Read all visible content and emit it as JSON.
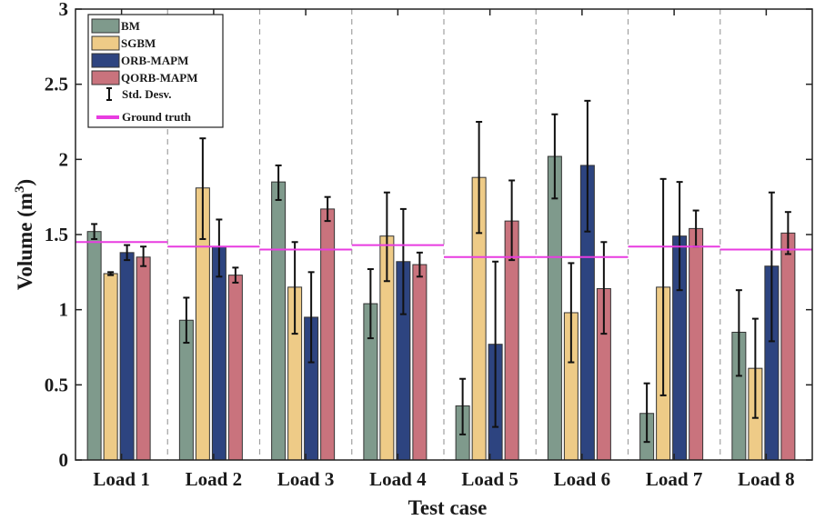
{
  "chart_data": {
    "type": "bar",
    "title": "",
    "xlabel": "Test case",
    "ylabel": "Volume (m",
    "ylabel_superscript": "3",
    "ylabel_close": ")",
    "ylim": [
      0,
      3
    ],
    "yticks": [
      0,
      0.5,
      1,
      1.5,
      2,
      2.5,
      3
    ],
    "ytick_labels": [
      "0",
      "0.5",
      "1",
      "1.5",
      "2",
      "2.5",
      "3"
    ],
    "grid": "vertical dashed separators between groups",
    "categories": [
      "Load 1",
      "Load 2",
      "Load 3",
      "Load 4",
      "Load 5",
      "Load 6",
      "Load 7",
      "Load 8"
    ],
    "series": [
      {
        "name": "BM",
        "color": "#7f9a8c",
        "values": [
          1.52,
          0.93,
          1.85,
          1.04,
          0.36,
          2.02,
          0.31,
          0.85
        ],
        "error_low": [
          1.47,
          0.78,
          1.73,
          0.81,
          0.17,
          1.74,
          0.12,
          0.56
        ],
        "error_high": [
          1.57,
          1.08,
          1.96,
          1.27,
          0.54,
          2.3,
          0.51,
          1.13
        ]
      },
      {
        "name": "SGBM",
        "color": "#eecb87",
        "values": [
          1.24,
          1.81,
          1.15,
          1.49,
          1.88,
          0.98,
          1.15,
          0.61
        ],
        "error_low": [
          1.23,
          1.47,
          0.84,
          1.19,
          1.51,
          0.65,
          0.43,
          0.28
        ],
        "error_high": [
          1.25,
          2.14,
          1.45,
          1.78,
          2.25,
          1.31,
          1.87,
          0.94
        ]
      },
      {
        "name": "ORB-MAPM",
        "color": "#2d4480",
        "values": [
          1.38,
          1.42,
          0.95,
          1.32,
          0.77,
          1.96,
          1.49,
          1.29
        ],
        "error_low": [
          1.33,
          1.22,
          0.65,
          0.97,
          0.22,
          1.52,
          1.13,
          0.79
        ],
        "error_high": [
          1.43,
          1.6,
          1.25,
          1.67,
          1.32,
          2.39,
          1.85,
          1.78
        ]
      },
      {
        "name": "QORB-MAPM",
        "color": "#c9737d",
        "values": [
          1.35,
          1.23,
          1.67,
          1.3,
          1.59,
          1.14,
          1.54,
          1.51
        ],
        "error_low": [
          1.29,
          1.18,
          1.59,
          1.22,
          1.33,
          0.84,
          1.42,
          1.37
        ],
        "error_high": [
          1.42,
          1.28,
          1.75,
          1.38,
          1.86,
          1.45,
          1.66,
          1.65
        ]
      }
    ],
    "ground_truth": {
      "name": "Ground truth",
      "color": "#e83ce0",
      "values": [
        1.45,
        1.42,
        1.4,
        1.43,
        1.35,
        1.35,
        1.42,
        1.4
      ]
    },
    "errorbar_legend": "Std. Desv.",
    "legend_position": "top-left"
  }
}
